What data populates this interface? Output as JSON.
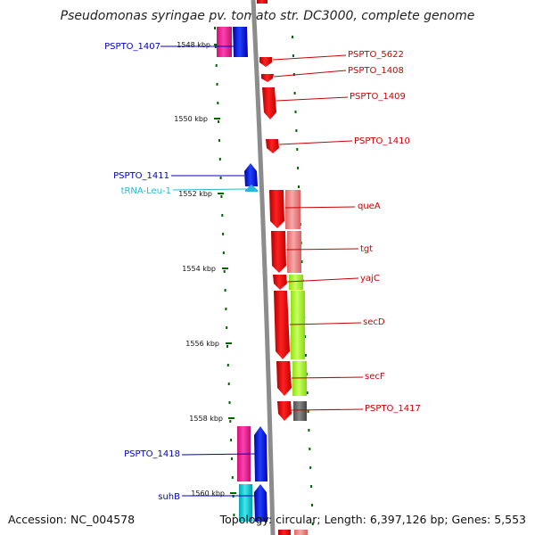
{
  "title": "Pseudomonas syringae pv. tomato str. DC3000, complete genome",
  "footer": {
    "accession": "Accession: NC_004578",
    "stats": "Topology: circular; Length: 6,397,126 bp; Genes: 5,553"
  },
  "ruler": {
    "ticks": [
      "1548 kbp",
      "1550 kbp",
      "1552 kbp",
      "1554 kbp",
      "1556 kbp",
      "1558 kbp",
      "1560 kbp"
    ]
  },
  "colors": {
    "reverse_gene": "#0000ff",
    "forward_gene": "#ff0000",
    "trna": "#29b7d6",
    "cog_magenta": "#ff1493",
    "cog_pink": "#f08080",
    "cog_lime": "#adff2f",
    "cog_gray": "#666666",
    "cog_cyan": "#00ced1",
    "backbone": "#888888",
    "tick_green": "#006400"
  },
  "genes": {
    "left": [
      "PSPTO_1407",
      "PSPTO_1411",
      "tRNA-Leu-1",
      "PSPTO_1418",
      "suhB"
    ],
    "right": [
      "PSPTO_5622",
      "PSPTO_1408",
      "PSPTO_1409",
      "PSPTO_1410",
      "queA",
      "tgt",
      "yajC",
      "secD",
      "secF",
      "PSPTO_1417"
    ]
  }
}
